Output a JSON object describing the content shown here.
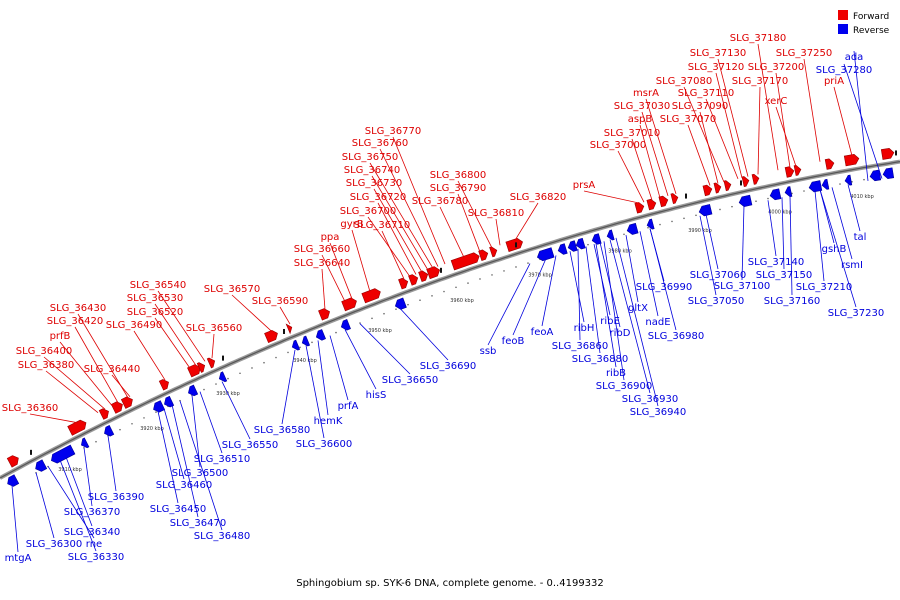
{
  "legend": [
    {
      "label": "Forward",
      "color": "#ee0000"
    },
    {
      "label": "Reverse",
      "color": "#0000ee"
    }
  ],
  "caption": "Sphingobium sp. SYK-6 DNA, complete genome. - 0..4199332",
  "ticks": [
    "3910 kbp",
    "3920 kbp",
    "3930 kbp",
    "3940 kbp",
    "3950 kbp",
    "3960 kbp",
    "3970 kbp",
    "3980 kbp",
    "3990 kbp",
    "4000 kbp",
    "4010 kbp"
  ],
  "forward_labels": [
    "SLG_36360",
    "SLG_36380",
    "SLG_36400",
    "prfB",
    "SLG_36420",
    "SLG_36430",
    "SLG_36440",
    "SLG_36490",
    "SLG_36520",
    "SLG_36530",
    "SLG_36540",
    "SLG_36560",
    "SLG_36570",
    "SLG_36590",
    "SLG_36640",
    "SLG_36660",
    "ppa",
    "gyrB",
    "SLG_36710",
    "SLG_36700",
    "SLG_36720",
    "SLG_36730",
    "SLG_36740",
    "SLG_36750",
    "SLG_36760",
    "SLG_36770",
    "SLG_36780",
    "SLG_36790",
    "SLG_36800",
    "SLG_36810",
    "SLG_36820",
    "prsA",
    "SLG_37000",
    "SLG_37010",
    "aspB",
    "SLG_37030",
    "msrA",
    "SLG_37070",
    "SLG_37090",
    "SLG_37080",
    "SLG_37110",
    "SLG_37120",
    "SLG_37130",
    "SLG_37170",
    "SLG_37180",
    "SLG_37200",
    "xerC",
    "SLG_37250",
    "priA"
  ],
  "reverse_labels": [
    "mtgA",
    "SLG_36300",
    "rne",
    "SLG_36330",
    "SLG_36340",
    "SLG_36370",
    "SLG_36390",
    "SLG_36450",
    "SLG_36460",
    "SLG_36470",
    "SLG_36480",
    "SLG_36500",
    "SLG_36510",
    "SLG_36550",
    "SLG_36580",
    "SLG_36600",
    "hemK",
    "prfA",
    "hisS",
    "SLG_36650",
    "SLG_36690",
    "ssb",
    "feoB",
    "feoA",
    "ribH",
    "SLG_36860",
    "SLG_36880",
    "ribE",
    "ribD",
    "ribB",
    "SLG_36900",
    "SLG_36930",
    "SLG_36940",
    "gltX",
    "nadE",
    "SLG_36980",
    "SLG_36990",
    "SLG_37050",
    "SLG_37060",
    "SLG_37100",
    "SLG_37140",
    "SLG_37150",
    "SLG_37160",
    "SLG_37210",
    "gshB",
    "rsmI",
    "SLG_37230",
    "tal",
    "ada",
    "SLG_37280"
  ]
}
